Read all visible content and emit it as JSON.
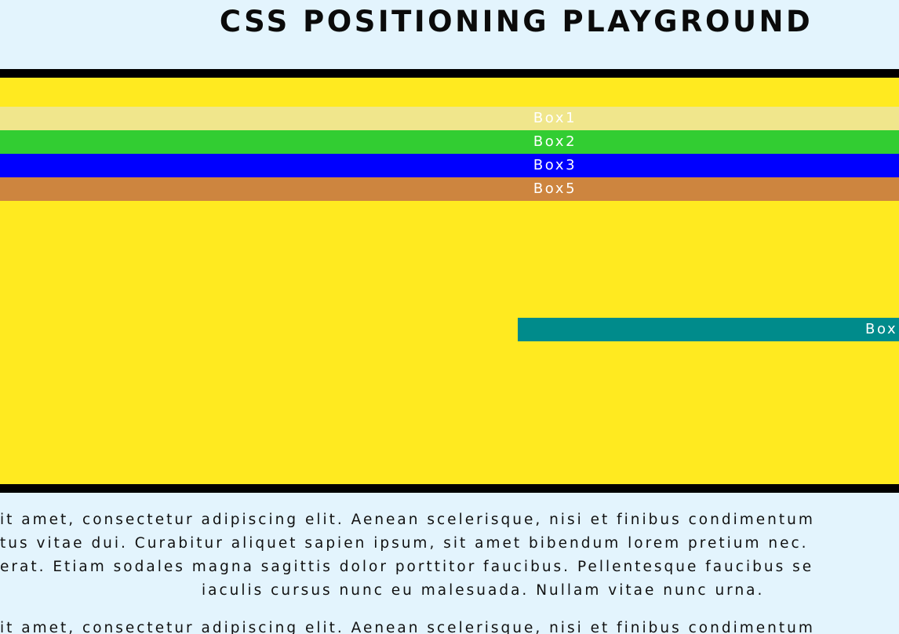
{
  "header": {
    "title": "CSS POSITIONING PLAYGROUND"
  },
  "playground": {
    "box1": "Box1",
    "box2": "Box2",
    "box3": "Box3",
    "box5": "Box5",
    "box4": "Box"
  },
  "content": {
    "paragraph1": [
      "it amet, consectetur adipiscing elit. Aenean scelerisque, nisi et finibus condimentum",
      "tus vitae dui. Curabitur aliquet sapien ipsum, sit amet bibendum lorem pretium nec.",
      "erat. Etiam sodales magna sagittis dolor porttitor faucibus. Pellentesque faucibus se",
      "iaculis cursus nunc eu malesuada. Nullam vitae nunc urna."
    ],
    "paragraph2": [
      "it amet, consectetur adipiscing elit. Aenean scelerisque, nisi et finibus condimentum"
    ]
  },
  "colors": {
    "background": "#e3f4fd",
    "playground": "#ffea20",
    "box1": "#f0e68c",
    "box2": "#32cd32",
    "box3": "#0000ff",
    "box4": "#008b8b",
    "box5": "#cd853f"
  }
}
